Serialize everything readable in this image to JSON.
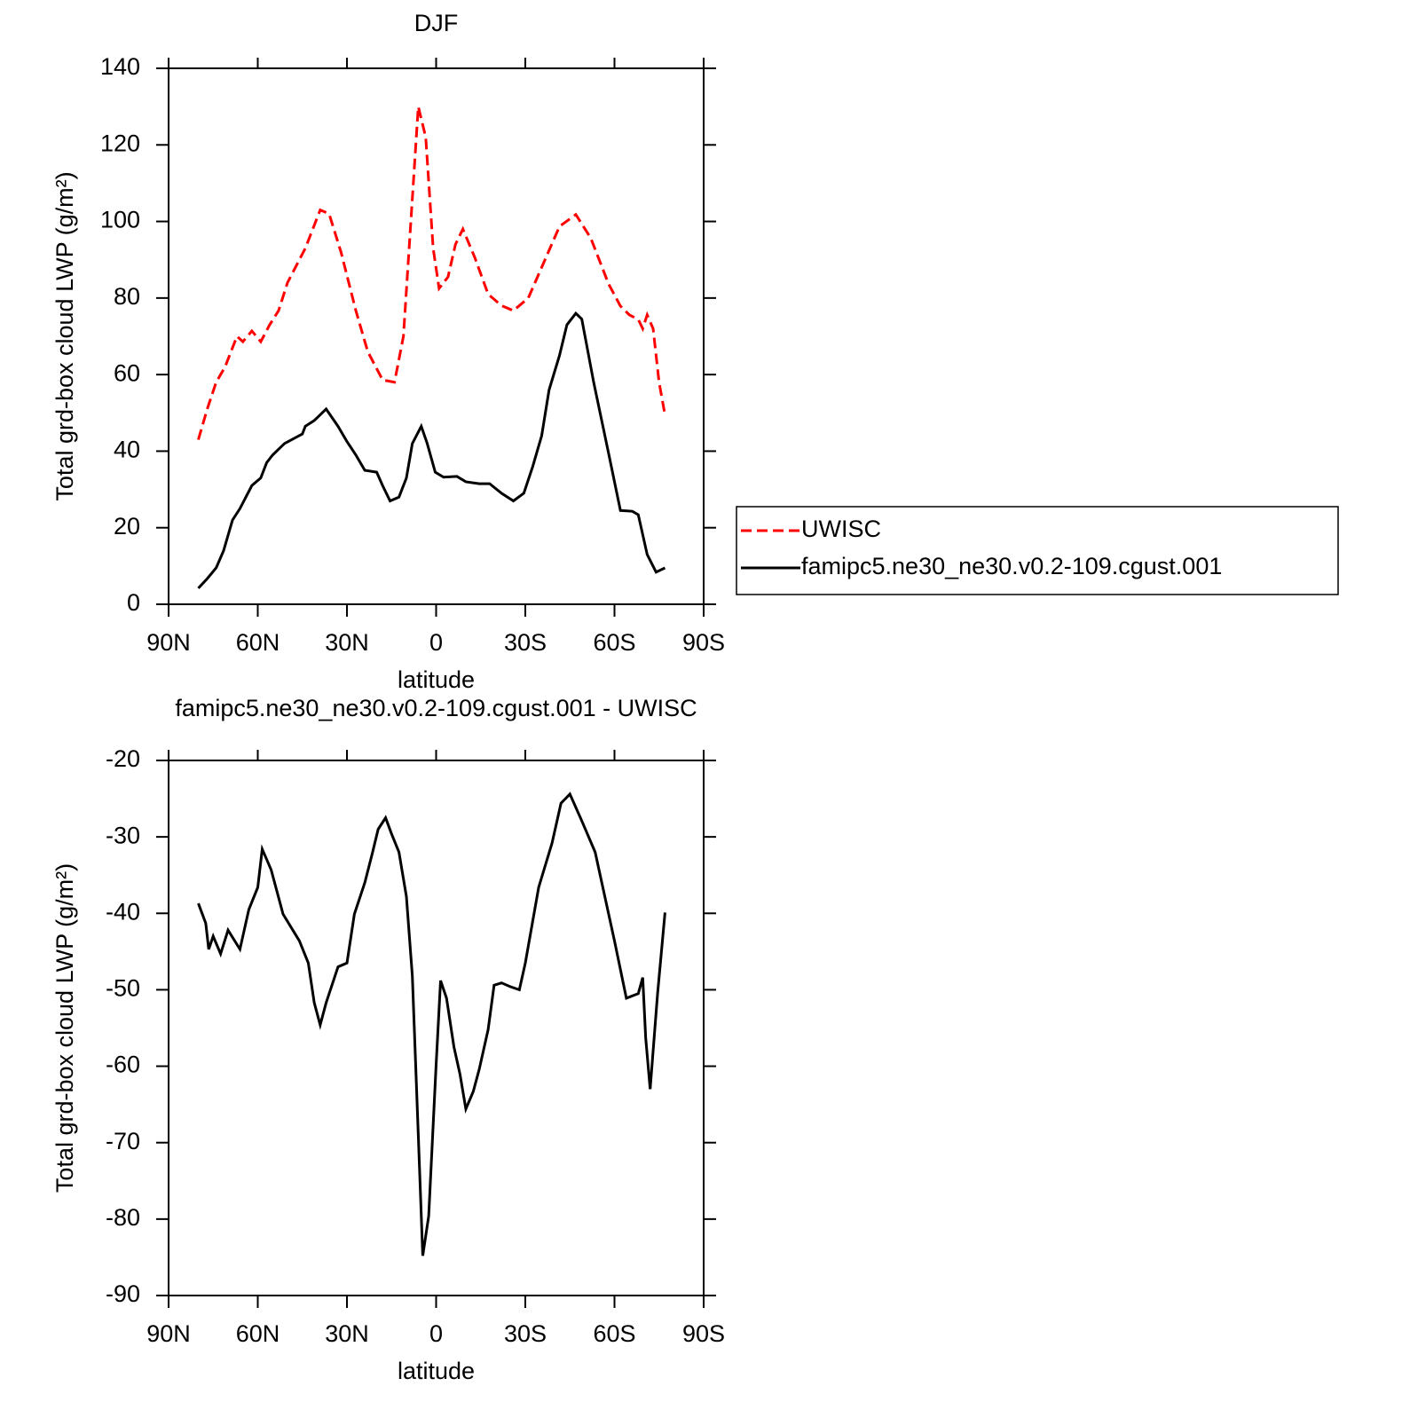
{
  "chart_data": [
    {
      "type": "line",
      "title": "DJF",
      "xlabel": "latitude",
      "ylabel": "Total grd-box cloud LWP (g/m²)",
      "xlim": [
        90,
        -90
      ],
      "xticks": [
        {
          "value": 90,
          "label": "90N"
        },
        {
          "value": 60,
          "label": "60N"
        },
        {
          "value": 30,
          "label": "30N"
        },
        0,
        {
          "value": -30,
          "label": "30S"
        },
        {
          "value": -60,
          "label": "60S"
        },
        {
          "value": -90,
          "label": "90S"
        }
      ],
      "ylim": [
        0,
        140
      ],
      "yticks": [
        0,
        20,
        40,
        60,
        80,
        100,
        120,
        140
      ],
      "legend": "right",
      "series": [
        {
          "name": "UWISC",
          "color": "#ff0000",
          "dash": true,
          "x": [
            80,
            77,
            74,
            71,
            67,
            65,
            62,
            59,
            56,
            53,
            50,
            44,
            39,
            36,
            32,
            27,
            23,
            18,
            14,
            11,
            8.5,
            6,
            3.5,
            1,
            -1,
            -4,
            -6.5,
            -9,
            -13,
            -17.5,
            -22,
            -26,
            -31,
            -35.5,
            -41.5,
            -47,
            -52,
            -58,
            -62,
            -65,
            -68,
            -69.5,
            -71,
            -73,
            -75,
            -77
          ],
          "values": [
            43,
            51,
            58,
            62,
            70,
            68.6,
            71.4,
            68.6,
            73,
            76.7,
            84,
            93,
            103,
            102,
            92,
            76.7,
            66,
            58.6,
            58,
            70,
            100,
            130,
            122,
            93,
            82.5,
            85.5,
            94,
            98,
            90.6,
            81,
            78,
            76.7,
            80,
            88,
            98.7,
            101.8,
            95.7,
            83.7,
            77.9,
            75.6,
            74.4,
            72,
            75.6,
            72,
            58,
            49.4
          ]
        },
        {
          "name": "famipc5.ne30_ne30.v0.2-109.cgust.001",
          "color": "#000000",
          "dash": false,
          "x": [
            80,
            77,
            74,
            71.5,
            68.5,
            66,
            62,
            59,
            57,
            55,
            51,
            45,
            44,
            41,
            37,
            33,
            30,
            27,
            24,
            20,
            18,
            15.5,
            12.5,
            10,
            8,
            5,
            3,
            0.3,
            -2.5,
            -7,
            -10,
            -14.5,
            -18,
            -22,
            -26,
            -29.5,
            -32.5,
            -35.5,
            -38,
            -41.5,
            -44,
            -47,
            -49,
            -53,
            -58,
            -62,
            -66,
            -68,
            -71,
            -74,
            -77
          ],
          "values": [
            4.2,
            6.7,
            9.5,
            14,
            22,
            25,
            31,
            33,
            37,
            39,
            42,
            44.5,
            46.5,
            48,
            51,
            46.5,
            42.5,
            39,
            35,
            34.5,
            31,
            27,
            28,
            33,
            42,
            46.5,
            42,
            34.5,
            33.2,
            33.4,
            32,
            31.5,
            31.5,
            29,
            27,
            29,
            36,
            44,
            56,
            65,
            73,
            76,
            74.5,
            58,
            39.5,
            24.5,
            24.3,
            23.4,
            13,
            8.4,
            9.5
          ]
        }
      ]
    },
    {
      "type": "line",
      "title": "famipc5.ne30_ne30.v0.2-109.cgust.001 - UWISC",
      "xlabel": "latitude",
      "ylabel": "Total grd-box cloud LWP (g/m²)",
      "xlim": [
        90,
        -90
      ],
      "xticks": [
        {
          "value": 90,
          "label": "90N"
        },
        {
          "value": 60,
          "label": "60N"
        },
        {
          "value": 30,
          "label": "30N"
        },
        0,
        {
          "value": -30,
          "label": "30S"
        },
        {
          "value": -60,
          "label": "60S"
        },
        {
          "value": -90,
          "label": "90S"
        }
      ],
      "ylim": [
        -90,
        -20
      ],
      "yticks": [
        -90,
        -80,
        -70,
        -60,
        -50,
        -40,
        -30,
        -20
      ],
      "series": [
        {
          "color": "#000000",
          "dash": false,
          "x": [
            80,
            77.5,
            76.5,
            75,
            72.5,
            70,
            66,
            63,
            60,
            58.5,
            55.5,
            51.5,
            46,
            43,
            41,
            39,
            37,
            33,
            30,
            27.5,
            24,
            21.5,
            19.5,
            17,
            15,
            12.5,
            10,
            8,
            6,
            4.5,
            2.5,
            0,
            -1.5,
            -3.5,
            -6,
            -8,
            -10,
            -12.5,
            -14.5,
            -17.5,
            -19.5,
            -22,
            -25,
            -28,
            -30,
            -34.5,
            -39,
            -42,
            -45,
            -49,
            -53.5,
            -60,
            -64,
            -68,
            -69.5,
            -70.5,
            -72,
            -74.5,
            -77
          ],
          "values": [
            -38.7,
            -41.3,
            -44.7,
            -43,
            -45.3,
            -42.2,
            -44.7,
            -39.5,
            -36.6,
            -31.6,
            -34.3,
            -40.1,
            -43.6,
            -46.5,
            -51.7,
            -54.6,
            -51.7,
            -47,
            -46.5,
            -40.1,
            -36,
            -32.2,
            -29,
            -27.5,
            -29.6,
            -32,
            -37.8,
            -48.2,
            -69,
            -84.8,
            -79.6,
            -59.8,
            -48.8,
            -51.1,
            -57.5,
            -61,
            -65.6,
            -63.3,
            -60.4,
            -55.2,
            -49.4,
            -49.1,
            -49.6,
            -50,
            -46.5,
            -36.6,
            -30.8,
            -25.6,
            -24.4,
            -27.9,
            -32,
            -43.6,
            -51.1,
            -50.5,
            -48.4,
            -56.3,
            -63,
            -50.5,
            -39.9
          ]
        }
      ]
    }
  ]
}
